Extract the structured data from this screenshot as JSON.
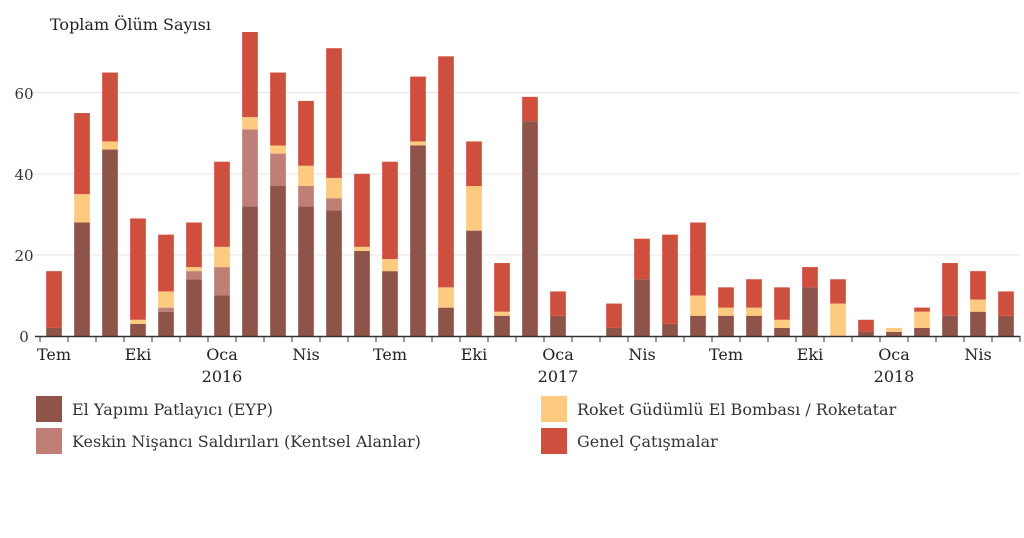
{
  "chart_data": {
    "type": "bar",
    "stacked": true,
    "ylabel": "Toplam Ölüm Sayısı",
    "ylim": [
      0,
      75
    ],
    "yticks": [
      0,
      20,
      40,
      60
    ],
    "grid": true,
    "x_ticks": [
      {
        "label": "Tem",
        "year": "",
        "after": 0
      },
      {
        "label": "Eki",
        "year": "",
        "after": 3
      },
      {
        "label": "Oca",
        "year": "2016",
        "after": 6
      },
      {
        "label": "Nis",
        "year": "",
        "after": 9
      },
      {
        "label": "Tem",
        "year": "",
        "after": 12
      },
      {
        "label": "Eki",
        "year": "",
        "after": 15
      },
      {
        "label": "Oca",
        "year": "2017",
        "after": 18
      },
      {
        "label": "Nis",
        "year": "",
        "after": 21
      },
      {
        "label": "Tem",
        "year": "",
        "after": 24
      },
      {
        "label": "Eki",
        "year": "",
        "after": 27
      },
      {
        "label": "Oca",
        "year": "2018",
        "after": 30
      },
      {
        "label": "Nis",
        "year": "",
        "after": 33
      }
    ],
    "series": [
      {
        "name": "El Yapımı Patlayıcı (EYP)",
        "color": "#8e5449",
        "values": [
          2,
          28,
          46,
          3,
          6,
          14,
          10,
          32,
          37,
          32,
          31,
          21,
          16,
          47,
          7,
          26,
          5,
          53,
          5,
          0,
          2,
          14,
          3,
          5,
          5,
          5,
          2,
          12,
          0,
          1,
          1,
          2,
          5,
          6,
          5
        ]
      },
      {
        "name": "Keskin Nişancı Saldırıları (Kentsel Alanlar)",
        "color": "#bf7e76",
        "values": [
          0,
          0,
          0,
          0,
          1,
          2,
          7,
          19,
          8,
          5,
          3,
          0,
          0,
          0,
          0,
          0,
          0,
          0,
          0,
          0,
          0,
          0,
          0,
          0,
          0,
          0,
          0,
          0,
          0,
          0,
          0,
          0,
          0,
          0,
          0
        ]
      },
      {
        "name": "Roket Güdümlü El Bombası / Roketatar",
        "color": "#fdca7f",
        "values": [
          0,
          7,
          2,
          1,
          4,
          1,
          5,
          3,
          2,
          5,
          5,
          1,
          3,
          1,
          5,
          11,
          1,
          0,
          0,
          0,
          0,
          0,
          0,
          5,
          2,
          2,
          2,
          0,
          8,
          0,
          1,
          4,
          0,
          3,
          0
        ]
      },
      {
        "name": "Genel Çatışmalar",
        "color": "#ce4f3e",
        "values": [
          14,
          20,
          17,
          25,
          14,
          11,
          21,
          21,
          18,
          16,
          32,
          18,
          24,
          16,
          57,
          11,
          12,
          6,
          6,
          0,
          6,
          10,
          22,
          18,
          5,
          7,
          8,
          5,
          6,
          3,
          0,
          1,
          13,
          7,
          6
        ]
      }
    ],
    "legend_position": "bottom"
  }
}
